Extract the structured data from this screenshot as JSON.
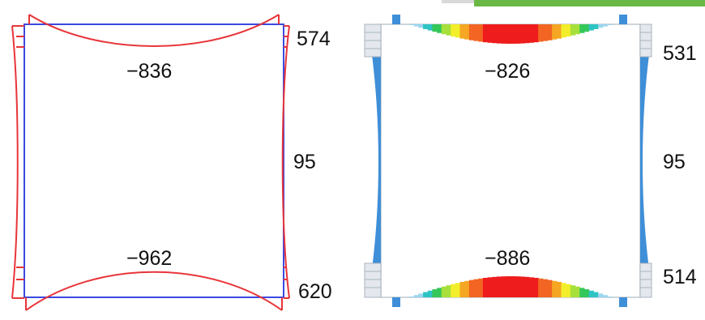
{
  "left_diagram": {
    "top_beam_moment": "−836",
    "bottom_beam_moment": "−962",
    "right_labels": {
      "top": "574",
      "middle": "95",
      "bottom": "620"
    }
  },
  "right_diagram": {
    "top_beam_moment": "−826",
    "bottom_beam_moment": "−886",
    "right_labels": {
      "top": "531",
      "middle": "95",
      "bottom": "514"
    }
  },
  "colors": {
    "outline_red": "#e8353a",
    "frame_blue": "#3b49e0",
    "column_blue": "#3f8fd8",
    "contour_scale": [
      "#9ad6ef",
      "#2ec4c4",
      "#34c759",
      "#a7e03a",
      "#f2ee2a",
      "#f5a623",
      "#f26522",
      "#ee1c1c"
    ]
  }
}
